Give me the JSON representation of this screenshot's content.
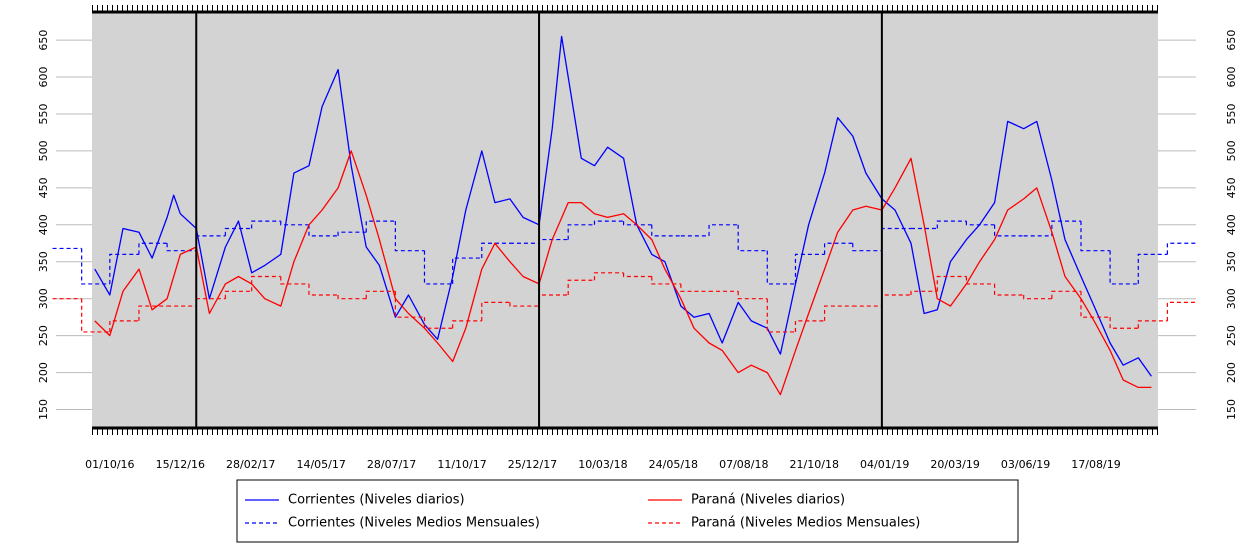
{
  "chart_data": {
    "type": "line",
    "date_format": "dd/mm/yy",
    "xlim": [
      "12/09/16",
      "22/10/19"
    ],
    "ylim": [
      125,
      688
    ],
    "xticks": [
      "01/10/16",
      "15/12/16",
      "28/02/17",
      "14/05/17",
      "28/07/17",
      "11/10/17",
      "25/12/17",
      "10/03/18",
      "24/05/18",
      "07/08/18",
      "21/10/18",
      "04/01/19",
      "20/03/19",
      "03/06/19",
      "17/08/19"
    ],
    "yticks": [
      150,
      200,
      250,
      300,
      350,
      400,
      450,
      500,
      550,
      600,
      650
    ],
    "vlines": [
      "01/01/17",
      "01/01/18",
      "01/01/19"
    ],
    "background": "#d3d3d3",
    "series": [
      {
        "name": "Corrientes (Niveles diarios)",
        "color": "#0000ff",
        "style": "daily",
        "x": [
          "15/09/16",
          "01/10/16",
          "15/10/16",
          "01/11/16",
          "15/11/16",
          "01/12/16",
          "08/12/16",
          "15/12/16",
          "01/01/17",
          "15/01/17",
          "01/02/17",
          "15/02/17",
          "01/03/17",
          "15/03/17",
          "01/04/17",
          "15/04/17",
          "01/05/17",
          "15/05/17",
          "01/06/17",
          "15/06/17",
          "01/07/17",
          "15/07/17",
          "01/08/17",
          "15/08/17",
          "01/09/17",
          "15/09/17",
          "01/10/17",
          "15/10/17",
          "01/11/17",
          "15/11/17",
          "01/12/17",
          "15/12/17",
          "01/01/18",
          "15/01/18",
          "25/01/18",
          "01/02/18",
          "15/02/18",
          "01/03/18",
          "15/03/18",
          "01/04/18",
          "15/04/18",
          "01/05/18",
          "15/05/18",
          "01/06/18",
          "15/06/18",
          "01/07/18",
          "15/07/18",
          "01/08/18",
          "15/08/18",
          "01/09/18",
          "15/09/18",
          "01/10/18",
          "15/10/18",
          "01/11/18",
          "15/11/18",
          "01/12/18",
          "15/12/18",
          "01/01/19",
          "15/01/19",
          "01/02/19",
          "15/02/19",
          "01/03/19",
          "15/03/19",
          "01/04/19",
          "15/04/19",
          "01/05/19",
          "15/05/19",
          "01/06/19",
          "15/06/19",
          "01/07/19",
          "15/07/19",
          "01/08/19",
          "15/08/19",
          "01/09/19",
          "15/09/19",
          "01/10/19",
          "15/10/19"
        ],
        "values": [
          340,
          305,
          395,
          390,
          355,
          410,
          440,
          415,
          395,
          300,
          370,
          405,
          335,
          345,
          360,
          470,
          480,
          560,
          610,
          480,
          370,
          345,
          275,
          305,
          265,
          245,
          330,
          420,
          500,
          430,
          435,
          410,
          400,
          530,
          655,
          600,
          490,
          480,
          505,
          490,
          400,
          360,
          350,
          290,
          275,
          280,
          240,
          295,
          270,
          260,
          225,
          320,
          400,
          470,
          545,
          520,
          470,
          435,
          420,
          375,
          280,
          285,
          350,
          380,
          400,
          430,
          540,
          530,
          540,
          460,
          380,
          330,
          290,
          240,
          210,
          220,
          195
        ]
      },
      {
        "name": "Corrientes (Niveles Medios Mensuales)",
        "color": "#0000ff",
        "style": "monthly",
        "x": [
          "01/08/16",
          "01/09/16",
          "01/10/16",
          "01/11/16",
          "01/12/16",
          "01/01/17",
          "01/02/17",
          "01/03/17",
          "01/04/17",
          "01/05/17",
          "01/06/17",
          "01/07/17",
          "01/08/17",
          "01/09/17",
          "01/10/17",
          "01/11/17",
          "01/12/17",
          "01/01/18",
          "01/02/18",
          "01/03/18",
          "01/04/18",
          "01/05/18",
          "01/06/18",
          "01/07/18",
          "01/08/18",
          "01/09/18",
          "01/10/18",
          "01/11/18",
          "01/12/18",
          "01/01/19",
          "01/02/19",
          "01/03/19",
          "01/04/19",
          "01/05/19",
          "01/06/19",
          "01/07/19",
          "01/08/19",
          "01/09/19",
          "01/10/19",
          "01/11/19"
        ],
        "values": [
          368,
          320,
          360,
          375,
          365,
          385,
          395,
          405,
          400,
          385,
          390,
          405,
          365,
          320,
          355,
          375,
          375,
          380,
          400,
          405,
          400,
          385,
          385,
          400,
          365,
          320,
          360,
          375,
          365,
          395,
          395,
          405,
          400,
          385,
          385,
          405,
          365,
          320,
          360,
          375
        ]
      },
      {
        "name": "Paraná (Niveles diarios)",
        "color": "#ff0000",
        "style": "daily",
        "x": [
          "15/09/16",
          "01/10/16",
          "15/10/16",
          "01/11/16",
          "15/11/16",
          "01/12/16",
          "15/12/16",
          "01/01/17",
          "15/01/17",
          "01/02/17",
          "15/02/17",
          "01/03/17",
          "15/03/17",
          "01/04/17",
          "15/04/17",
          "01/05/17",
          "15/05/17",
          "01/06/17",
          "15/06/17",
          "01/07/17",
          "15/07/17",
          "01/08/17",
          "15/08/17",
          "01/09/17",
          "15/09/17",
          "01/10/17",
          "15/10/17",
          "01/11/17",
          "15/11/17",
          "01/12/17",
          "15/12/17",
          "01/01/18",
          "15/01/18",
          "01/02/18",
          "15/02/18",
          "01/03/18",
          "15/03/18",
          "01/04/18",
          "15/04/18",
          "01/05/18",
          "15/05/18",
          "01/06/18",
          "15/06/18",
          "01/07/18",
          "15/07/18",
          "01/08/18",
          "15/08/18",
          "01/09/18",
          "15/09/18",
          "01/10/18",
          "15/10/18",
          "01/11/18",
          "15/11/18",
          "01/12/18",
          "15/12/18",
          "01/01/19",
          "15/01/19",
          "01/02/19",
          "15/02/19",
          "01/03/19",
          "15/03/19",
          "01/04/19",
          "15/04/19",
          "01/05/19",
          "15/05/19",
          "01/06/19",
          "15/06/19",
          "01/07/19",
          "15/07/19",
          "01/08/19",
          "15/08/19",
          "01/09/19",
          "15/09/19",
          "01/10/19",
          "15/10/19"
        ],
        "values": [
          270,
          250,
          310,
          340,
          285,
          300,
          360,
          370,
          280,
          320,
          330,
          320,
          300,
          290,
          350,
          400,
          420,
          450,
          500,
          440,
          380,
          300,
          280,
          260,
          240,
          215,
          260,
          340,
          375,
          350,
          330,
          320,
          380,
          430,
          430,
          415,
          410,
          415,
          400,
          380,
          340,
          300,
          260,
          240,
          230,
          200,
          210,
          200,
          170,
          230,
          280,
          340,
          390,
          420,
          425,
          420,
          450,
          490,
          400,
          300,
          290,
          320,
          350,
          380,
          420,
          435,
          450,
          390,
          330,
          300,
          270,
          230,
          190,
          180,
          180
        ]
      },
      {
        "name": "Paraná (Niveles Medios Mensuales)",
        "color": "#ff0000",
        "style": "monthly",
        "x": [
          "01/08/16",
          "01/09/16",
          "01/10/16",
          "01/11/16",
          "01/12/16",
          "01/01/17",
          "01/02/17",
          "01/03/17",
          "01/04/17",
          "01/05/17",
          "01/06/17",
          "01/07/17",
          "01/08/17",
          "01/09/17",
          "01/10/17",
          "01/11/17",
          "01/12/17",
          "01/01/18",
          "01/02/18",
          "01/03/18",
          "01/04/18",
          "01/05/18",
          "01/06/18",
          "01/07/18",
          "01/08/18",
          "01/09/18",
          "01/10/18",
          "01/11/18",
          "01/12/18",
          "01/01/19",
          "01/02/19",
          "01/03/19",
          "01/04/19",
          "01/05/19",
          "01/06/19",
          "01/07/19",
          "01/08/19",
          "01/09/19",
          "01/10/19",
          "01/11/19"
        ],
        "values": [
          300,
          255,
          270,
          290,
          290,
          300,
          310,
          330,
          320,
          305,
          300,
          310,
          275,
          260,
          270,
          295,
          290,
          305,
          325,
          335,
          330,
          320,
          310,
          310,
          300,
          255,
          270,
          290,
          290,
          305,
          310,
          330,
          320,
          305,
          300,
          310,
          275,
          260,
          270,
          295
        ]
      }
    ]
  }
}
